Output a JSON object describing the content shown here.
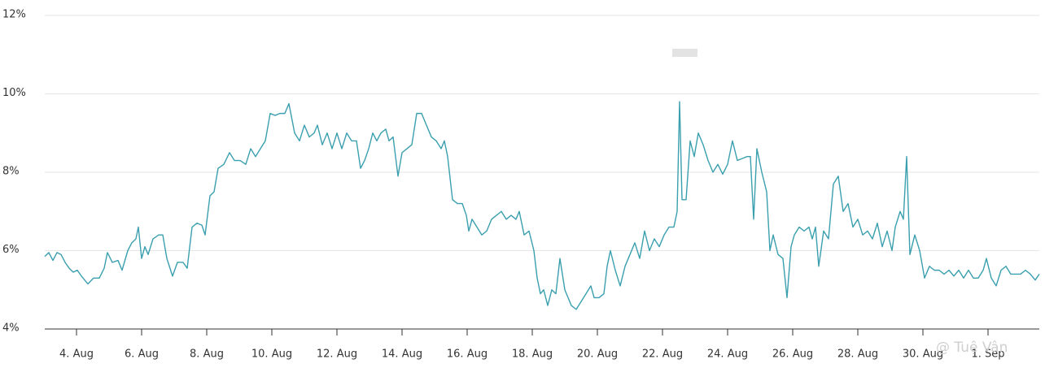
{
  "chart_data": {
    "type": "line",
    "color": "#3a9fae",
    "xlim": [
      3.025,
      33.575
    ],
    "ylim": [
      4,
      12
    ],
    "yticks": [
      {
        "value": 4,
        "label": "4%"
      },
      {
        "value": 6,
        "label": "6%"
      },
      {
        "value": 8,
        "label": "8%"
      },
      {
        "value": 10,
        "label": "10%"
      },
      {
        "value": 12,
        "label": "12%"
      }
    ],
    "xticks": [
      {
        "value": 4,
        "label": "4. Aug"
      },
      {
        "value": 6,
        "label": "6. Aug"
      },
      {
        "value": 8,
        "label": "8. Aug"
      },
      {
        "value": 10,
        "label": "10. Aug"
      },
      {
        "value": 12,
        "label": "12. Aug"
      },
      {
        "value": 14,
        "label": "14. Aug"
      },
      {
        "value": 16,
        "label": "16. Aug"
      },
      {
        "value": 18,
        "label": "18. Aug"
      },
      {
        "value": 20,
        "label": "20. Aug"
      },
      {
        "value": 22,
        "label": "22. Aug"
      },
      {
        "value": 24,
        "label": "24. Aug"
      },
      {
        "value": 26,
        "label": "26. Aug"
      },
      {
        "value": 28,
        "label": "28. Aug"
      },
      {
        "value": 30,
        "label": "30. Aug"
      },
      {
        "value": 32,
        "label": "1. Sep"
      }
    ],
    "grid": true,
    "watermark": "@ Tuệ Vân",
    "x": [
      3.025,
      3.15,
      3.275,
      3.4,
      3.525,
      3.65,
      3.775,
      3.9,
      4.025,
      4.15,
      4.35,
      4.525,
      4.7,
      4.85,
      4.95,
      5.1,
      5.275,
      5.4,
      5.575,
      5.7,
      5.825,
      5.9,
      6.0,
      6.1,
      6.2,
      6.35,
      6.525,
      6.65,
      6.775,
      6.95,
      7.1,
      7.275,
      7.4,
      7.55,
      7.7,
      7.85,
      7.95,
      8.1,
      8.225,
      8.35,
      8.525,
      8.7,
      8.85,
      9.025,
      9.2,
      9.35,
      9.5,
      9.65,
      9.8,
      9.95,
      10.1,
      10.25,
      10.4,
      10.525,
      10.7,
      10.85,
      11.0,
      11.15,
      11.3,
      11.4,
      11.55,
      11.7,
      11.85,
      12.0,
      12.15,
      12.3,
      12.45,
      12.6,
      12.725,
      12.85,
      12.975,
      13.1,
      13.225,
      13.35,
      13.5,
      13.6,
      13.725,
      13.875,
      14.0,
      14.15,
      14.3,
      14.45,
      14.6,
      14.75,
      14.9,
      15.05,
      15.2,
      15.3,
      15.4,
      15.55,
      15.7,
      15.85,
      15.975,
      16.05,
      16.15,
      16.3,
      16.45,
      16.6,
      16.75,
      16.9,
      17.05,
      17.2,
      17.35,
      17.5,
      17.6,
      17.75,
      17.9,
      18.05,
      18.15,
      18.25,
      18.35,
      18.475,
      18.6,
      18.725,
      18.85,
      19.0,
      19.1,
      19.2,
      19.35,
      19.5,
      19.65,
      19.8,
      19.9,
      20.05,
      20.2,
      20.3,
      20.4,
      20.55,
      20.7,
      20.85,
      21.0,
      21.15,
      21.3,
      21.45,
      21.6,
      21.75,
      21.9,
      22.05,
      22.2,
      22.35,
      22.45,
      22.525,
      22.6,
      22.725,
      22.85,
      22.975,
      23.1,
      23.25,
      23.4,
      23.55,
      23.7,
      23.85,
      24.0,
      24.15,
      24.3,
      24.45,
      24.6,
      24.7,
      24.8,
      24.9,
      25.05,
      25.2,
      25.3,
      25.4,
      25.55,
      25.7,
      25.825,
      25.95,
      26.05,
      26.2,
      26.35,
      26.5,
      26.6,
      26.7,
      26.8,
      26.95,
      27.1,
      27.25,
      27.4,
      27.55,
      27.7,
      27.85,
      28.0,
      28.15,
      28.3,
      28.45,
      28.6,
      28.75,
      28.9,
      29.05,
      29.15,
      29.3,
      29.4,
      29.5,
      29.6,
      29.75,
      29.9,
      30.05,
      30.2,
      30.35,
      30.5,
      30.65,
      30.8,
      30.95,
      31.1,
      31.25,
      31.4,
      31.55,
      31.7,
      31.85,
      31.95,
      32.1,
      32.25,
      32.4,
      32.55,
      32.7,
      32.85,
      33.0,
      33.15,
      33.3,
      33.45,
      33.575
    ],
    "values": [
      5.85,
      5.95,
      5.75,
      5.95,
      5.9,
      5.7,
      5.55,
      5.45,
      5.5,
      5.35,
      5.15,
      5.3,
      5.3,
      5.55,
      5.95,
      5.7,
      5.75,
      5.5,
      6.0,
      6.2,
      6.3,
      6.6,
      5.8,
      6.1,
      5.9,
      6.3,
      6.4,
      6.4,
      5.8,
      5.35,
      5.7,
      5.7,
      5.55,
      6.6,
      6.7,
      6.65,
      6.4,
      7.4,
      7.5,
      8.1,
      8.2,
      8.5,
      8.3,
      8.3,
      8.2,
      8.6,
      8.4,
      8.6,
      8.8,
      9.5,
      9.45,
      9.5,
      9.5,
      9.75,
      9.0,
      8.8,
      9.2,
      8.9,
      9.0,
      9.2,
      8.7,
      9.0,
      8.6,
      9.0,
      8.6,
      9.0,
      8.8,
      8.8,
      8.1,
      8.3,
      8.6,
      9.0,
      8.8,
      9.0,
      9.1,
      8.8,
      8.9,
      7.9,
      8.5,
      8.6,
      8.7,
      9.5,
      9.5,
      9.2,
      8.9,
      8.8,
      8.6,
      8.8,
      8.4,
      7.3,
      7.2,
      7.2,
      6.9,
      6.5,
      6.8,
      6.6,
      6.4,
      6.5,
      6.8,
      6.9,
      7.0,
      6.8,
      6.9,
      6.8,
      7.0,
      6.4,
      6.5,
      6.0,
      5.3,
      4.9,
      5.0,
      4.6,
      5.0,
      4.9,
      5.8,
      5.0,
      4.8,
      4.6,
      4.5,
      4.7,
      4.9,
      5.1,
      4.8,
      4.8,
      4.9,
      5.6,
      6.0,
      5.5,
      5.1,
      5.6,
      5.9,
      6.2,
      5.8,
      6.5,
      6.0,
      6.3,
      6.1,
      6.4,
      6.6,
      6.6,
      7.0,
      9.8,
      7.3,
      7.3,
      8.8,
      8.4,
      9.0,
      8.7,
      8.3,
      8.0,
      8.2,
      7.95,
      8.2,
      8.8,
      8.3,
      8.35,
      8.4,
      8.4,
      6.8,
      8.6,
      8.0,
      7.5,
      6.0,
      6.4,
      5.9,
      5.8,
      4.8,
      6.1,
      6.4,
      6.6,
      6.5,
      6.6,
      6.3,
      6.6,
      5.6,
      6.5,
      6.3,
      7.7,
      7.9,
      7.0,
      7.2,
      6.6,
      6.8,
      6.4,
      6.5,
      6.3,
      6.7,
      6.1,
      6.5,
      6.0,
      6.6,
      7.0,
      6.8,
      8.4,
      5.9,
      6.4,
      6.0,
      5.3,
      5.6,
      5.5,
      5.5,
      5.4,
      5.5,
      5.35,
      5.5,
      5.3,
      5.5,
      5.3,
      5.3,
      5.5,
      5.8,
      5.3,
      5.1,
      5.5,
      5.6,
      5.4,
      5.4,
      5.4,
      5.5,
      5.4,
      5.25,
      5.4
    ]
  }
}
